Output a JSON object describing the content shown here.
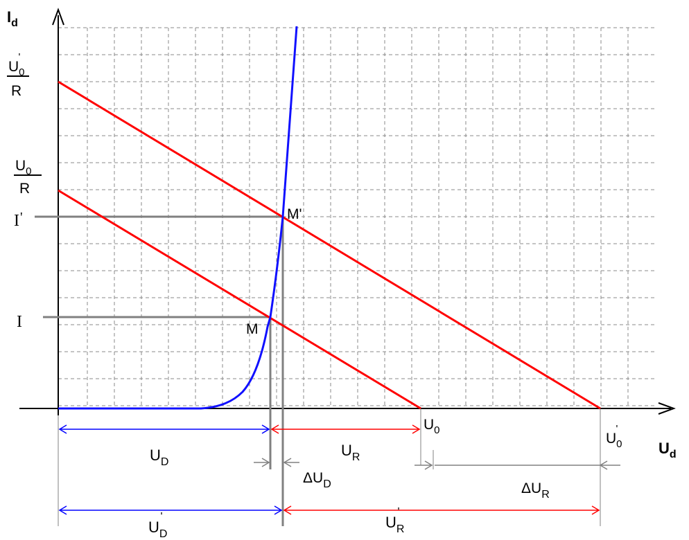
{
  "colors": {
    "grid": "#8a8a8a",
    "axis": "#000000",
    "diode_curve": "#1010ff",
    "load_line": "#ff0000",
    "guide": "#808080",
    "blue_arrow": "#0000ff",
    "red_arrow": "#ff0000",
    "gray_arrow": "#808080"
  },
  "axes": {
    "y_label_main": "I",
    "y_label_sub": "d",
    "x_label_main": "U",
    "x_label_sub": "d"
  },
  "y_marks": {
    "u0p_r_num_main": "U",
    "u0p_r_num_sub": "0",
    "u0p_r_num_prime": "'",
    "u0p_r_den": "R",
    "u0_r_num_main": "U",
    "u0_r_num_sub": "0",
    "u0_r_den": "R",
    "i_prime_main": "I",
    "i_prime_mark": "'",
    "i": "I"
  },
  "points": {
    "m": "M",
    "m_prime": "M'"
  },
  "x_marks": {
    "u0_main": "U",
    "u0_sub": "0",
    "u0p_main": "U",
    "u0p_sub": "0",
    "u0p_prime": "'"
  },
  "dimensions": {
    "ud_main": "U",
    "ud_sub": "D",
    "ur_main": "U",
    "ur_sub": "R",
    "delta_ud_main": "ΔU",
    "delta_ud_sub": "D",
    "delta_ur_main": "ΔU",
    "delta_ur_sub": "R",
    "udp_main": "U",
    "udp_sub": "D",
    "udp_prime": "'",
    "urp_main": "U",
    "urp_sub": "R",
    "urp_prime": "'"
  }
}
